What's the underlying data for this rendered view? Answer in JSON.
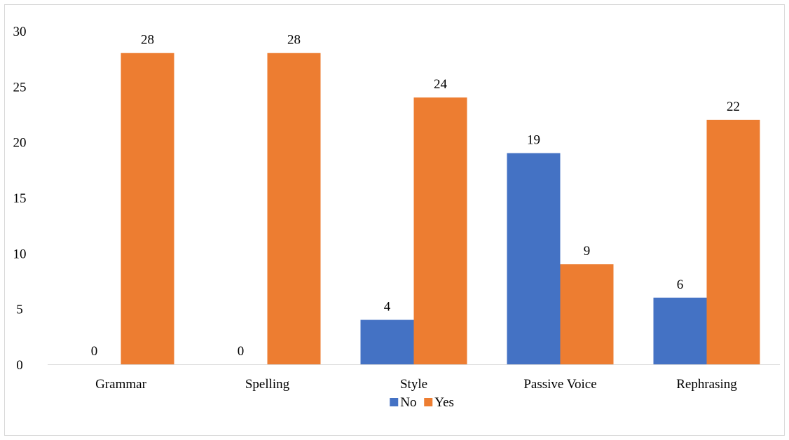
{
  "chart_data": {
    "type": "bar",
    "categories": [
      "Grammar",
      "Spelling",
      "Style",
      "Passive Voice",
      "Rephrasing"
    ],
    "series": [
      {
        "name": "No",
        "values": [
          0,
          0,
          4,
          19,
          6
        ],
        "color": "#4472c4"
      },
      {
        "name": "Yes",
        "values": [
          28,
          28,
          24,
          9,
          22
        ],
        "color": "#ed7d31"
      }
    ],
    "ylim": [
      0,
      30
    ],
    "yticks": [
      0,
      5,
      10,
      15,
      20,
      25,
      30
    ],
    "grid": false,
    "data_labels": true,
    "legend": "bottom"
  }
}
